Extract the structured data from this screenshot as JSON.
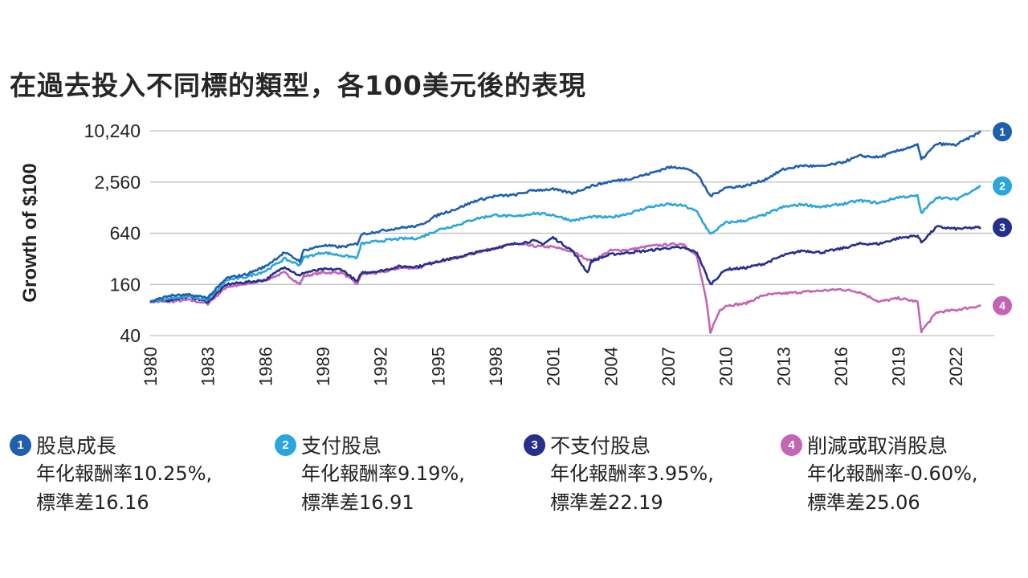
{
  "title": "在過去投入不同標的類型，各100美元後的表現",
  "chart_data": {
    "type": "line",
    "ylabel": "Growth of $100",
    "yscale": "log2",
    "ylim": [
      40,
      10240
    ],
    "yticks": [
      40,
      160,
      640,
      2560,
      10240
    ],
    "ytick_labels": [
      "40",
      "160",
      "640",
      "2,560",
      "10,240"
    ],
    "xlim": [
      1980,
      2024
    ],
    "xticks": [
      "1980",
      "1983",
      "1986",
      "1989",
      "1992",
      "1995",
      "1998",
      "2001",
      "2004",
      "2007",
      "2010",
      "2013",
      "2016",
      "2019",
      "2022"
    ],
    "grid": "horizontal",
    "series": [
      {
        "name": "股息成長",
        "marker": "1",
        "color": "#1f5fae",
        "x": [
          1980,
          1981,
          1982,
          1983,
          1984,
          1985,
          1986,
          1987,
          1987.8,
          1988,
          1989,
          1990,
          1990.8,
          1991,
          1992,
          1993,
          1994,
          1995,
          1996,
          1997,
          1998,
          1999,
          2000,
          2001,
          2002,
          2003,
          2004,
          2005,
          2006,
          2007,
          2007.8,
          2008.5,
          2009.2,
          2010,
          2011,
          2012,
          2013,
          2014,
          2015,
          2016,
          2017,
          2018,
          2019,
          2020,
          2020.2,
          2021,
          2022,
          2023.3
        ],
        "y": [
          100,
          118,
          120,
          112,
          190,
          210,
          260,
          380,
          300,
          400,
          460,
          440,
          480,
          620,
          680,
          740,
          780,
          1050,
          1250,
          1550,
          1750,
          1800,
          2050,
          2100,
          1900,
          2300,
          2600,
          2800,
          3200,
          3800,
          3800,
          3200,
          1750,
          2200,
          2300,
          2700,
          3600,
          4000,
          3900,
          4300,
          5200,
          5000,
          6000,
          7000,
          4700,
          7200,
          7000,
          10000
        ]
      },
      {
        "name": "支付股息",
        "marker": "2",
        "color": "#2aa6dd",
        "x": [
          1980,
          1981,
          1982,
          1983,
          1984,
          1985,
          1986,
          1987,
          1987.8,
          1988,
          1989,
          1990,
          1990.8,
          1991,
          1992,
          1993,
          1994,
          1995,
          1996,
          1997,
          1998,
          1999,
          2000,
          2001,
          2002,
          2003,
          2004,
          2005,
          2006,
          2007,
          2007.8,
          2008.5,
          2009.2,
          2010,
          2011,
          2012,
          2013,
          2014,
          2015,
          2016,
          2017,
          2018,
          2019,
          2020,
          2020.2,
          2021,
          2022,
          2023.3
        ],
        "y": [
          100,
          110,
          115,
          105,
          180,
          195,
          230,
          320,
          270,
          330,
          380,
          350,
          330,
          480,
          520,
          550,
          560,
          700,
          800,
          950,
          1050,
          1000,
          1100,
          1050,
          900,
          1000,
          980,
          1100,
          1300,
          1400,
          1350,
          1150,
          620,
          850,
          900,
          1050,
          1300,
          1400,
          1300,
          1400,
          1550,
          1450,
          1700,
          1750,
          1100,
          1700,
          1600,
          2300
        ]
      },
      {
        "name": "不支付股息",
        "marker": "3",
        "color": "#252f8c",
        "x": [
          1980,
          1981,
          1982,
          1983,
          1984,
          1985,
          1986,
          1987,
          1987.8,
          1988,
          1989,
          1990,
          1990.8,
          1991,
          1992,
          1993,
          1994,
          1995,
          1996,
          1997,
          1998,
          1999,
          2000,
          2000.5,
          2001,
          2002,
          2002.8,
          2003,
          2004,
          2005,
          2006,
          2007,
          2007.8,
          2008.5,
          2009.2,
          2010,
          2011,
          2012,
          2013,
          2014,
          2015,
          2016,
          2017,
          2018,
          2019,
          2020,
          2020.2,
          2021,
          2022,
          2023.3
        ],
        "y": [
          100,
          105,
          115,
          100,
          160,
          170,
          180,
          260,
          200,
          220,
          240,
          240,
          170,
          220,
          230,
          260,
          260,
          300,
          330,
          380,
          430,
          480,
          520,
          480,
          570,
          400,
          220,
          300,
          360,
          380,
          400,
          430,
          430,
          380,
          160,
          240,
          250,
          280,
          350,
          400,
          380,
          420,
          480,
          480,
          560,
          600,
          500,
          760,
          720,
          750
        ]
      },
      {
        "name": "削減或取消股息",
        "marker": "4",
        "color": "#c265b4",
        "x": [
          1980,
          1981,
          1982,
          1983,
          1984,
          1985,
          1986,
          1987,
          1987.8,
          1988,
          1989,
          1990,
          1990.8,
          1991,
          1992,
          1993,
          1994,
          1995,
          1996,
          1997,
          1998,
          1999,
          2000,
          2001,
          2002,
          2003,
          2004,
          2005,
          2006,
          2007,
          2007.8,
          2008.5,
          2009,
          2009.2,
          2009.7,
          2010,
          2011,
          2012,
          2013,
          2014,
          2015,
          2016,
          2017,
          2018,
          2019,
          2020,
          2020.2,
          2021,
          2022,
          2023.3
        ],
        "y": [
          100,
          100,
          105,
          95,
          150,
          160,
          180,
          220,
          160,
          200,
          220,
          220,
          160,
          210,
          220,
          250,
          250,
          300,
          330,
          380,
          430,
          480,
          450,
          440,
          390,
          300,
          400,
          410,
          450,
          470,
          480,
          340,
          100,
          44,
          80,
          90,
          95,
          120,
          125,
          130,
          135,
          140,
          130,
          100,
          110,
          100,
          45,
          75,
          80,
          90
        ]
      }
    ]
  },
  "legend": [
    {
      "marker": "1",
      "name": "股息成長",
      "line1": "年化報酬率10.25%,",
      "line2": "標準差16.16",
      "color": "#1f5fae"
    },
    {
      "marker": "2",
      "name": "支付股息",
      "line1": "年化報酬率9.19%,",
      "line2": "標準差16.91",
      "color": "#2aa6dd"
    },
    {
      "marker": "3",
      "name": "不支付股息",
      "line1": "年化報酬率3.95%,",
      "line2": "標準差22.19",
      "color": "#252f8c"
    },
    {
      "marker": "4",
      "name": "削減或取消股息",
      "line1": "年化報酬率-0.60%,",
      "line2": "標準差25.06",
      "color": "#c265b4"
    }
  ]
}
